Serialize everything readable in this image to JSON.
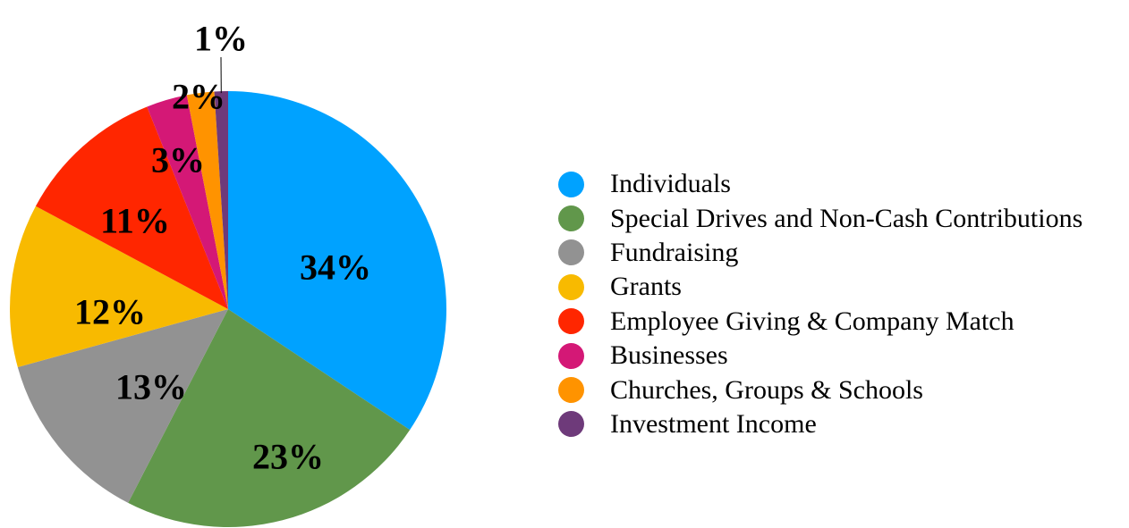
{
  "chart_data": {
    "type": "pie",
    "title": "",
    "legend_position": "right",
    "slices": [
      {
        "label": "Individuals",
        "value": 34,
        "value_label": "34%",
        "color": "#00A2FF"
      },
      {
        "label": "Special Drives and Non-Cash Contributions",
        "value": 23,
        "value_label": "23%",
        "color": "#61974B"
      },
      {
        "label": "Fundraising",
        "value": 13,
        "value_label": "13%",
        "color": "#929292"
      },
      {
        "label": "Grants",
        "value": 12,
        "value_label": "12%",
        "color": "#F8BA00"
      },
      {
        "label": "Employee Giving & Company Match",
        "value": 11,
        "value_label": "11%",
        "color": "#FF2600"
      },
      {
        "label": "Businesses",
        "value": 3,
        "value_label": "3%",
        "color": "#D41876"
      },
      {
        "label": "Churches, Groups & Schools",
        "value": 2,
        "value_label": "2%",
        "color": "#FF9300"
      },
      {
        "label": "Investment Income",
        "value": 1,
        "value_label": "1%",
        "color": "#6E3A7A"
      }
    ]
  }
}
